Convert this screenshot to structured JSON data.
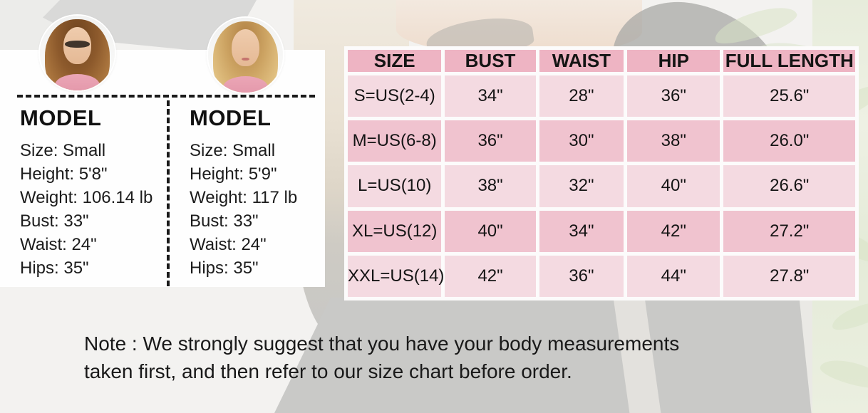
{
  "colors": {
    "header_pink": "#eeb4c3",
    "row_pink_dark": "#f0c3cf",
    "row_pink_light": "#f4dae1",
    "table_frame_white": "#fcfbfb",
    "text_dark": "#141414"
  },
  "models": [
    {
      "heading": "MODEL",
      "lines": [
        "Size: Small",
        "Height: 5'8\"",
        "Weight: 106.14 lb",
        "Bust: 33\"",
        "Waist: 24\"",
        "Hips: 35\""
      ]
    },
    {
      "heading": "MODEL",
      "lines": [
        "Size: Small",
        "Height: 5'9\"",
        "Weight: 117 lb",
        "Bust: 33\"",
        "Waist: 24\"",
        "Hips: 35\""
      ]
    }
  ],
  "chart_data": {
    "type": "table",
    "title": "Garment size chart",
    "columns": [
      "SIZE",
      "BUST",
      "WAIST",
      "HIP",
      "FULL LENGTH"
    ],
    "rows": [
      [
        "S=US(2-4)",
        "34\"",
        "28\"",
        "36\"",
        "25.6\""
      ],
      [
        "M=US(6-8)",
        "36\"",
        "30\"",
        "38\"",
        "26.0\""
      ],
      [
        "L=US(10)",
        "38\"",
        "32\"",
        "40\"",
        "26.6\""
      ],
      [
        "XL=US(12)",
        "40\"",
        "34\"",
        "42\"",
        "27.2\""
      ],
      [
        "XXL=US(14)",
        "42\"",
        "36\"",
        "44\"",
        "27.8\""
      ]
    ]
  },
  "note": {
    "lines": [
      "Note : We strongly suggest that you have your body measurements",
      "taken first, and then refer to our size chart before order."
    ]
  }
}
